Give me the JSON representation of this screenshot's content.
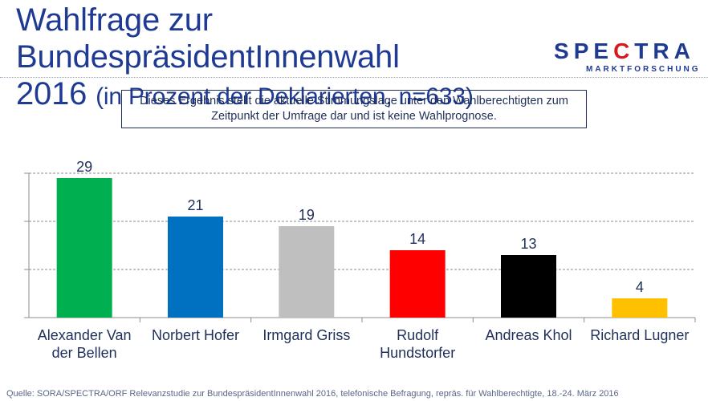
{
  "title": {
    "main": "Wahlfrage zur BundespräsidentInnenwahl",
    "year": "2016",
    "subtitle": "(in Prozent der Deklarierten, n=633)"
  },
  "logo": {
    "word": "SPECTRA",
    "sub": "MARKTFORSCHUNG",
    "accent_color": "#d71920",
    "brand_color": "#1f3a93"
  },
  "note": "Dieses Ergebnis stellt die aktuelle Stimmungslage unter den Wahlberechtigten zum Zeitpunkt der Umfrage dar und ist keine Wahlprognose.",
  "source": "Quelle: SORA/SPECTRA/ORF Relevanzstudie zur BundespräsidentInnenwahl 2016, telefonische Befragung, repräs. für Wahlberechtigte, 18.-24. März 2016",
  "chart_data": {
    "type": "bar",
    "categories": [
      [
        "Alexander Van",
        "der Bellen"
      ],
      [
        "Norbert Hofer"
      ],
      [
        "Irmgard Griss"
      ],
      [
        "Rudolf",
        "Hundstorfer"
      ],
      [
        "Andreas Khol"
      ],
      [
        "Richard Lugner"
      ]
    ],
    "values": [
      29,
      21,
      19,
      14,
      13,
      4
    ],
    "colors": [
      "#00b050",
      "#0070c0",
      "#bfbfbf",
      "#ff0000",
      "#000000",
      "#ffc000"
    ],
    "ylim": [
      0,
      30
    ],
    "gridlines": [
      10,
      20,
      30
    ],
    "grid": true
  }
}
